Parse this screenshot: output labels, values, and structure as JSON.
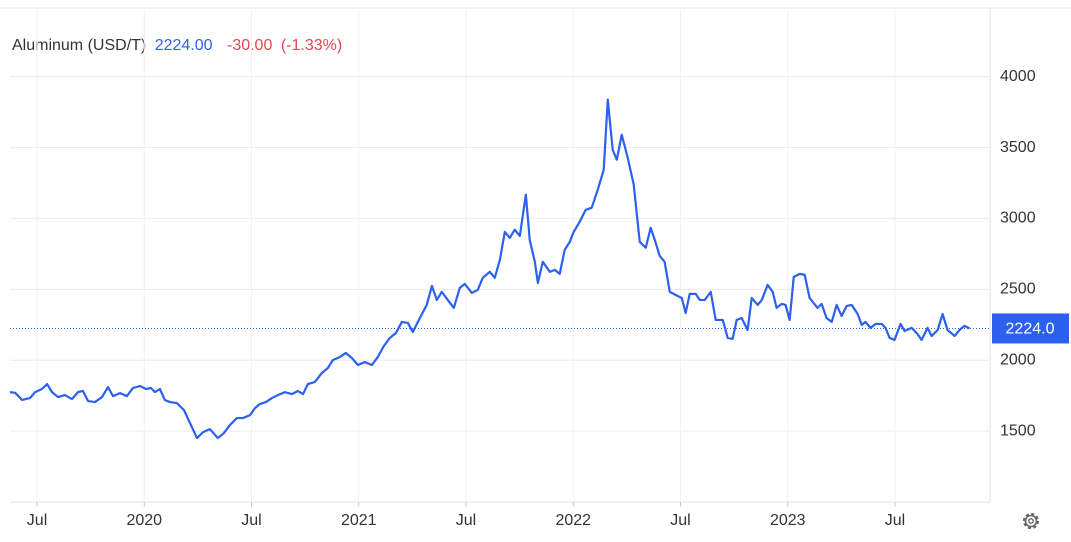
{
  "chart_data": {
    "type": "line",
    "title": "Aluminum (USD/T)",
    "price": "2224.00",
    "change": "-30.00",
    "change_pct": "(-1.33%)",
    "color": "#2c60ee",
    "price_color": "#2c60ee",
    "change_color": "#e5484d",
    "grid": true,
    "xlim": [
      2019.374,
      2023.943
    ],
    "xticks": [
      {
        "value": 2019.5,
        "label": "Jul"
      },
      {
        "value": 2020,
        "label": "2020"
      },
      {
        "value": 2020.5,
        "label": "Jul"
      },
      {
        "value": 2021,
        "label": "2021"
      },
      {
        "value": 2021.5,
        "label": "Jul"
      },
      {
        "value": 2022,
        "label": "2022"
      },
      {
        "value": 2022.5,
        "label": "Jul"
      },
      {
        "value": 2023,
        "label": "2023"
      },
      {
        "value": 2023.5,
        "label": "Jul"
      }
    ],
    "ylim": [
      1000,
      4470
    ],
    "yticks": [
      1500,
      2000,
      2500,
      3000,
      3500,
      4000
    ],
    "reference_line": {
      "value": 2224,
      "label": "2224.0"
    },
    "x": [
      2019.374,
      2019.398,
      2019.43,
      2019.467,
      2019.491,
      2019.523,
      2019.547,
      2019.57,
      2019.598,
      2019.63,
      2019.663,
      2019.691,
      2019.714,
      2019.738,
      2019.77,
      2019.803,
      2019.831,
      2019.854,
      2019.887,
      2019.919,
      2019.947,
      2019.98,
      2020.008,
      2020.031,
      2020.05,
      2020.073,
      2020.096,
      2020.12,
      2020.152,
      2020.185,
      2020.213,
      2020.246,
      2020.274,
      2020.306,
      2020.343,
      2020.371,
      2020.399,
      2020.432,
      2020.46,
      2020.493,
      2020.516,
      2020.539,
      2020.567,
      2020.595,
      2020.623,
      2020.656,
      2020.688,
      2020.716,
      2020.74,
      2020.763,
      2020.795,
      2020.828,
      2020.856,
      2020.879,
      2020.912,
      2020.94,
      2020.968,
      2020.996,
      2021.028,
      2021.061,
      2021.089,
      2021.117,
      2021.145,
      2021.173,
      2021.201,
      2021.229,
      2021.252,
      2021.285,
      2021.317,
      2021.341,
      2021.364,
      2021.387,
      2021.415,
      2021.443,
      2021.471,
      2021.494,
      2021.527,
      2021.555,
      2021.578,
      2021.611,
      2021.634,
      2021.658,
      2021.681,
      2021.704,
      2021.727,
      2021.751,
      2021.779,
      2021.797,
      2021.821,
      2021.835,
      2021.858,
      2021.891,
      2021.914,
      2021.937,
      2021.96,
      2021.984,
      2022.002,
      2022.03,
      2022.058,
      2022.086,
      2022.114,
      2022.142,
      2022.161,
      2022.184,
      2022.203,
      2022.226,
      2022.254,
      2022.282,
      2022.31,
      2022.338,
      2022.361,
      2022.38,
      2022.403,
      2022.426,
      2022.45,
      2022.478,
      2022.506,
      2022.524,
      2022.543,
      2022.571,
      2022.59,
      2022.613,
      2022.641,
      2022.664,
      2022.697,
      2022.72,
      2022.743,
      2022.762,
      2022.785,
      2022.813,
      2022.832,
      2022.86,
      2022.879,
      2022.906,
      2022.93,
      2022.948,
      2022.972,
      2022.99,
      2023.009,
      2023.028,
      2023.056,
      2023.079,
      2023.102,
      2023.139,
      2023.158,
      2023.181,
      2023.205,
      2023.228,
      2023.251,
      2023.275,
      2023.298,
      2023.326,
      2023.345,
      2023.363,
      2023.386,
      2023.41,
      2023.438,
      2023.456,
      2023.475,
      2023.498,
      2023.526,
      2023.545,
      2023.578,
      2023.605,
      2023.624,
      2023.652,
      2023.671,
      2023.699,
      2023.722,
      2023.745,
      2023.778,
      2023.801,
      2023.824,
      2023.848
    ],
    "values": [
      1775,
      1770,
      1720,
      1733,
      1775,
      1797,
      1832,
      1775,
      1740,
      1754,
      1726,
      1775,
      1783,
      1712,
      1705,
      1740,
      1811,
      1747,
      1768,
      1747,
      1804,
      1818,
      1797,
      1804,
      1775,
      1797,
      1719,
      1705,
      1698,
      1649,
      1557,
      1451,
      1493,
      1514,
      1451,
      1486,
      1542,
      1592,
      1592,
      1613,
      1662,
      1691,
      1705,
      1733,
      1754,
      1775,
      1761,
      1783,
      1761,
      1832,
      1846,
      1910,
      1945,
      2001,
      2023,
      2051,
      2015,
      1966,
      1987,
      1966,
      2023,
      2100,
      2157,
      2192,
      2270,
      2263,
      2199,
      2298,
      2390,
      2524,
      2425,
      2482,
      2425,
      2369,
      2510,
      2538,
      2475,
      2496,
      2581,
      2623,
      2581,
      2708,
      2905,
      2863,
      2920,
      2877,
      3167,
      2849,
      2694,
      2545,
      2694,
      2623,
      2637,
      2609,
      2778,
      2835,
      2905,
      2976,
      3061,
      3075,
      3202,
      3343,
      3838,
      3484,
      3414,
      3590,
      3428,
      3237,
      2835,
      2793,
      2934,
      2849,
      2736,
      2694,
      2482,
      2460,
      2439,
      2333,
      2468,
      2468,
      2425,
      2425,
      2482,
      2284,
      2284,
      2157,
      2150,
      2284,
      2298,
      2213,
      2439,
      2390,
      2425,
      2531,
      2482,
      2369,
      2397,
      2390,
      2284,
      2588,
      2609,
      2602,
      2439,
      2369,
      2397,
      2298,
      2270,
      2390,
      2312,
      2383,
      2390,
      2326,
      2249,
      2270,
      2228,
      2256,
      2256,
      2228,
      2157,
      2143,
      2256,
      2206,
      2228,
      2185,
      2143,
      2228,
      2171,
      2213,
      2326,
      2213,
      2171,
      2213,
      2242,
      2224
    ]
  }
}
